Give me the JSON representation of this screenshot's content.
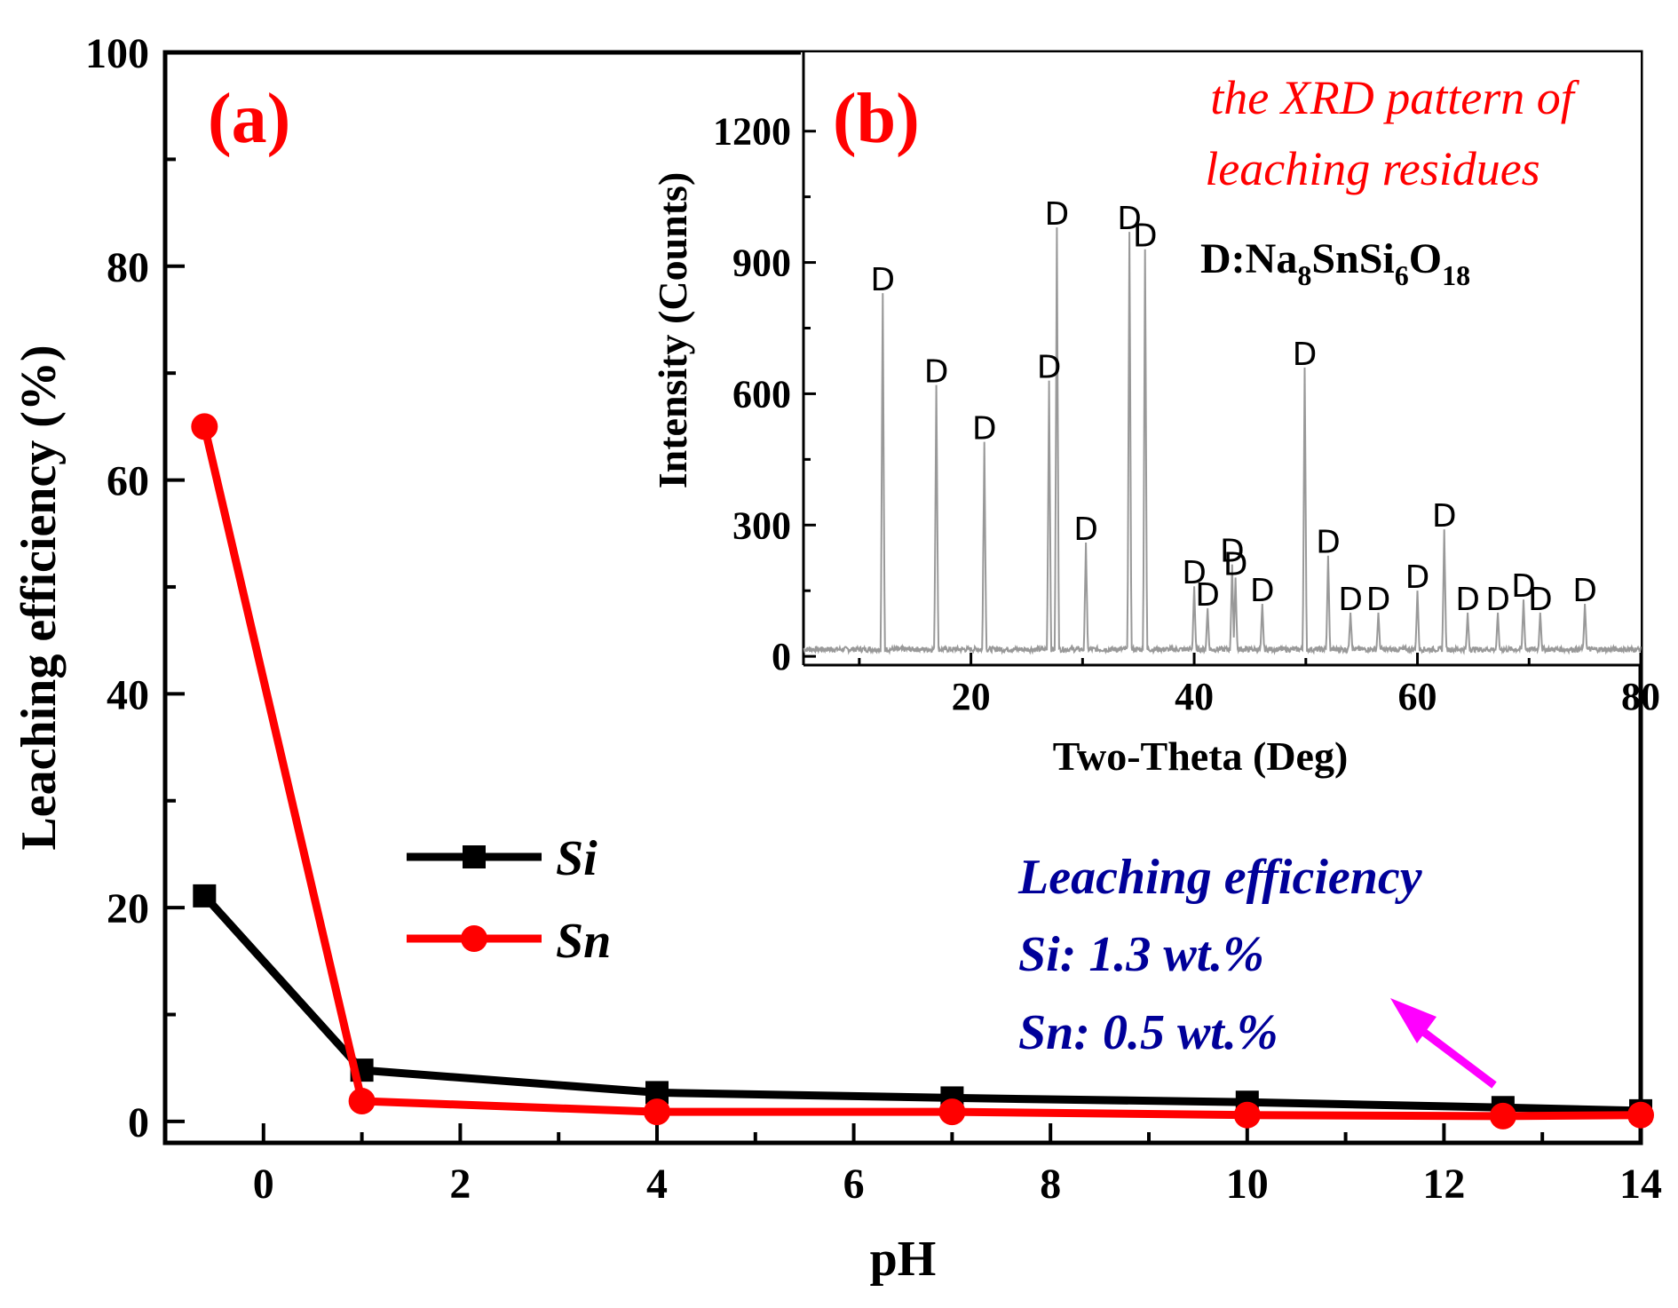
{
  "chart_data": [
    {
      "type": "line",
      "panel_label": "(a)",
      "xlabel": "pH",
      "ylabel": "Leaching  efficiency (%)",
      "xlim": [
        -1.0,
        14.0
      ],
      "ylim": [
        -2,
        100
      ],
      "x_ticks": [
        0,
        2,
        4,
        6,
        8,
        10,
        12,
        14
      ],
      "y_ticks": [
        0,
        20,
        40,
        60,
        80,
        100
      ],
      "grid": false,
      "legend_position": "center-left",
      "series": [
        {
          "name": "Si",
          "color": "#000000",
          "marker": "square",
          "x": [
            -0.6,
            1.0,
            4.0,
            7.0,
            10.0,
            12.6,
            14.0
          ],
          "y": [
            21.1,
            4.8,
            2.7,
            2.2,
            1.8,
            1.3,
            1.0
          ]
        },
        {
          "name": "Sn",
          "color": "#ff0000",
          "marker": "circle",
          "x": [
            -0.6,
            1.0,
            4.0,
            7.0,
            10.0,
            12.6,
            14.0
          ],
          "y": [
            65.0,
            1.9,
            0.9,
            0.9,
            0.6,
            0.5,
            0.6
          ]
        }
      ],
      "annotation": {
        "lines": [
          "Leaching efficiency",
          "Si:  1.3 wt.%",
          "Sn: 0.5 wt.%"
        ],
        "color": "#000099",
        "arrow_color": "#ff00ff"
      }
    },
    {
      "type": "line",
      "panel_label": "(b)",
      "title": "the XRD pattern of leaching residues",
      "title_lines": [
        "the XRD pattern of",
        "leaching residues"
      ],
      "title_color": "#ff0000",
      "xlabel": "Two-Theta (Deg)",
      "ylabel": "Intensity (Counts)",
      "xlim": [
        5,
        80
      ],
      "ylim": [
        -20,
        1380
      ],
      "x_ticks": [
        20,
        40,
        60,
        80
      ],
      "y_ticks": [
        0,
        300,
        600,
        900,
        1200
      ],
      "phase_key": {
        "prefix": "D:Na",
        "sub1": "8",
        "mid": "SnSi",
        "sub2": "6",
        "mid2": "O",
        "sub3": "18"
      },
      "peaks": [
        {
          "x": 12.1,
          "y": 820,
          "label": "D"
        },
        {
          "x": 16.9,
          "y": 610,
          "label": "D"
        },
        {
          "x": 21.2,
          "y": 480,
          "label": "D"
        },
        {
          "x": 27.0,
          "y": 620,
          "label": "D"
        },
        {
          "x": 27.7,
          "y": 970,
          "label": "D"
        },
        {
          "x": 30.3,
          "y": 250,
          "label": "D"
        },
        {
          "x": 34.2,
          "y": 960,
          "label": "D"
        },
        {
          "x": 35.6,
          "y": 920,
          "label": "D"
        },
        {
          "x": 40.0,
          "y": 150,
          "label": "D"
        },
        {
          "x": 41.2,
          "y": 100,
          "label": "D"
        },
        {
          "x": 43.4,
          "y": 200,
          "label": "D"
        },
        {
          "x": 43.7,
          "y": 170,
          "label": "D"
        },
        {
          "x": 46.1,
          "y": 110,
          "label": "D"
        },
        {
          "x": 49.9,
          "y": 650,
          "label": "D"
        },
        {
          "x": 52.0,
          "y": 220,
          "label": "D"
        },
        {
          "x": 54.0,
          "y": 90,
          "label": "D"
        },
        {
          "x": 56.5,
          "y": 90,
          "label": "D"
        },
        {
          "x": 60.0,
          "y": 140,
          "label": "D"
        },
        {
          "x": 62.4,
          "y": 280,
          "label": "D"
        },
        {
          "x": 64.5,
          "y": 90,
          "label": "D"
        },
        {
          "x": 67.2,
          "y": 90,
          "label": "D"
        },
        {
          "x": 69.5,
          "y": 120,
          "label": "D"
        },
        {
          "x": 71.0,
          "y": 90,
          "label": "D"
        },
        {
          "x": 75.0,
          "y": 110,
          "label": "D"
        }
      ]
    }
  ]
}
